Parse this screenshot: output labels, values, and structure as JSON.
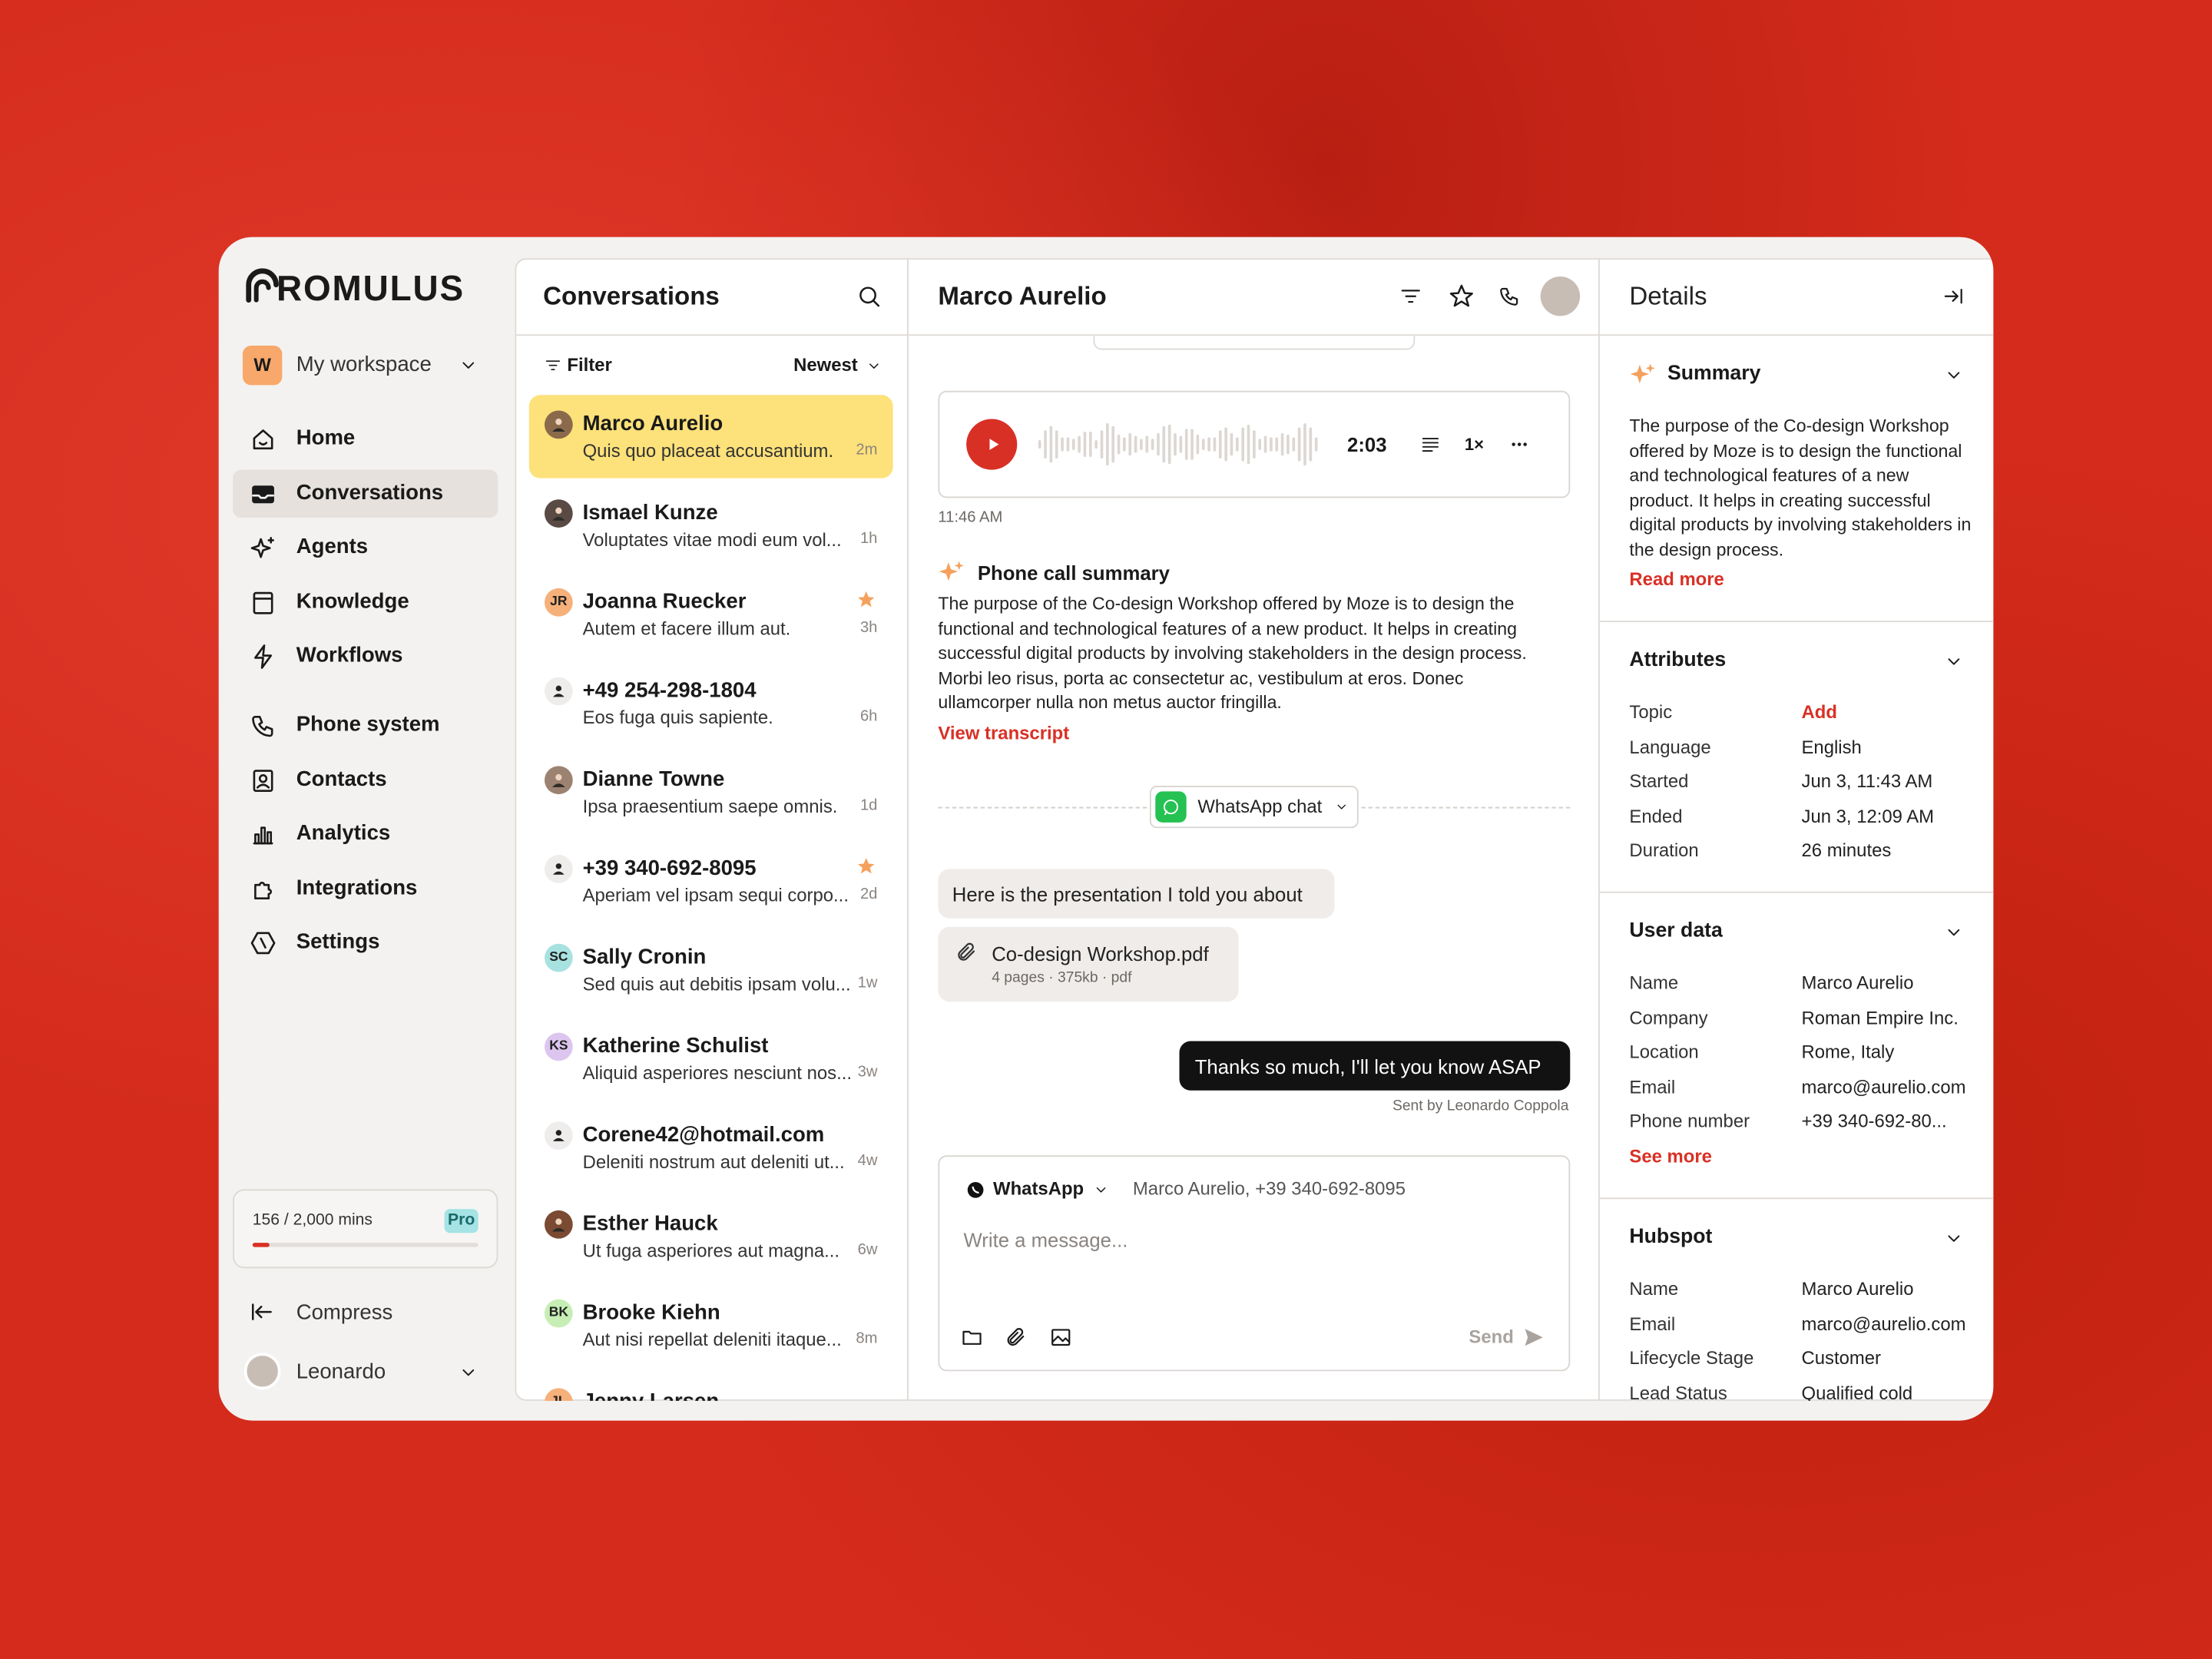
{
  "sidebar": {
    "logo": "ROMULUS",
    "workspace": {
      "initial": "W",
      "name": "My workspace"
    },
    "nav": [
      {
        "label": "Home"
      },
      {
        "label": "Conversations",
        "active": true
      },
      {
        "label": "Agents"
      },
      {
        "label": "Knowledge"
      },
      {
        "label": "Workflows"
      }
    ],
    "nav_secondary": [
      {
        "label": "Phone system"
      },
      {
        "label": "Contacts"
      },
      {
        "label": "Analytics"
      },
      {
        "label": "Integrations"
      },
      {
        "label": "Settings"
      }
    ],
    "usage": {
      "label": "156 / 2,000 mins",
      "plan": "Pro",
      "used": 156,
      "limit": 2000
    },
    "compress": "Compress",
    "user": "Leonardo"
  },
  "conversations": {
    "title": "Conversations",
    "filter": "Filter",
    "sort": "Newest",
    "items": [
      {
        "name": "Marco Aurelio",
        "preview": "Quis quo placeat accusantium.",
        "time": "2m",
        "avatar": "photo",
        "color": "#8a6a4a",
        "selected": true
      },
      {
        "name": "Ismael Kunze",
        "preview": "Voluptates vitae modi eum vol...",
        "time": "1h",
        "avatar": "photo",
        "color": "#5a4a44"
      },
      {
        "name": "Joanna Ruecker",
        "preview": "Autem et facere illum aut.",
        "time": "3h",
        "avatar": "initials",
        "initials": "JR",
        "color": "#f6b07a",
        "starred": true
      },
      {
        "name": "+49 254-298-1804",
        "preview": "Eos fuga quis sapiente.",
        "time": "6h",
        "avatar": "contact",
        "color": "#efedeb"
      },
      {
        "name": "Dianne Towne",
        "preview": "Ipsa praesentium saepe omnis.",
        "time": "1d",
        "avatar": "photo",
        "color": "#9c8270"
      },
      {
        "name": "+39 340-692-8095",
        "preview": "Aperiam vel ipsam sequi corpo...",
        "time": "2d",
        "avatar": "contact",
        "color": "#efedeb",
        "starred": true
      },
      {
        "name": "Sally Cronin",
        "preview": "Sed quis aut debitis ipsam volu...",
        "time": "1w",
        "avatar": "initials",
        "initials": "SC",
        "color": "#a8e2e0"
      },
      {
        "name": "Katherine Schulist",
        "preview": "Aliquid asperiores nesciunt nos...",
        "time": "3w",
        "avatar": "initials",
        "initials": "KS",
        "color": "#dcc6ef"
      },
      {
        "name": "Corene42@hotmail.com",
        "preview": "Deleniti nostrum aut deleniti ut...",
        "time": "4w",
        "avatar": "contact",
        "color": "#efedeb"
      },
      {
        "name": "Esther Hauck",
        "preview": "Ut fuga asperiores aut magna...",
        "time": "6w",
        "avatar": "photo",
        "color": "#7a4a32"
      },
      {
        "name": "Brooke Kiehn",
        "preview": "Aut nisi repellat deleniti itaque...",
        "time": "8m",
        "avatar": "initials",
        "initials": "BK",
        "color": "#c7eeb4"
      },
      {
        "name": "Jenny Larsen",
        "avatar": "initials",
        "initials": "JL",
        "color": "#f6b07a"
      }
    ]
  },
  "chat": {
    "contact": "Marco Aurelio",
    "call": {
      "duration": "2:03",
      "speed": "1×",
      "time": "11:46 AM"
    },
    "summary": {
      "title": "Phone call summary",
      "text": "The purpose of the Co-design Workshop offered by Moze is to design the functional and technological features of a new product. It helps in creating successful digital products by involving stakeholders in the design process. Morbi leo risus, porta ac consectetur ac, vestibulum at eros. Donec ullamcorper nulla non metus auctor fringilla.",
      "link": "View transcript"
    },
    "channel": "WhatsApp chat",
    "message": "Here is the presentation I told you about",
    "attachment": {
      "name": "Co-design Workshop.pdf",
      "meta": "4 pages · 375kb · pdf"
    },
    "reply": {
      "text": "Thanks so much, I'll let you know ASAP",
      "sender": "Sent by Leonardo Coppola"
    },
    "composer": {
      "channel": "WhatsApp",
      "recipient": "Marco Aurelio, +39 340-692-8095",
      "placeholder": "Write a message...",
      "send": "Send"
    }
  },
  "details": {
    "title": "Details",
    "summary": {
      "title": "Summary",
      "text": "The purpose of the Co-design Workshop offered by Moze is to design the functional and technological features of a new product. It helps in creating successful digital products by involving stakeholders in the design process.",
      "link": "Read more"
    },
    "attributes": {
      "title": "Attributes",
      "rows": [
        {
          "key": "Topic",
          "value": "Add"
        },
        {
          "key": "Language",
          "value": "English"
        },
        {
          "key": "Started",
          "value": "Jun 3, 11:43 AM"
        },
        {
          "key": "Ended",
          "value": "Jun 3, 12:09 AM"
        },
        {
          "key": "Duration",
          "value": "26 minutes"
        }
      ]
    },
    "user_data": {
      "title": "User data",
      "rows": [
        {
          "key": "Name",
          "value": "Marco Aurelio"
        },
        {
          "key": "Company",
          "value": "Roman Empire Inc."
        },
        {
          "key": "Location",
          "value": "Rome, Italy"
        },
        {
          "key": "Email",
          "value": "marco@aurelio.com"
        },
        {
          "key": "Phone number",
          "value": "+39 340-692-80..."
        }
      ],
      "link": "See more"
    },
    "hubspot": {
      "title": "Hubspot",
      "rows": [
        {
          "key": "Name",
          "value": "Marco Aurelio"
        },
        {
          "key": "Email",
          "value": "marco@aurelio.com"
        },
        {
          "key": "Lifecycle Stage",
          "value": "Customer"
        },
        {
          "key": "Lead Status",
          "value": "Qualified cold"
        }
      ]
    }
  }
}
